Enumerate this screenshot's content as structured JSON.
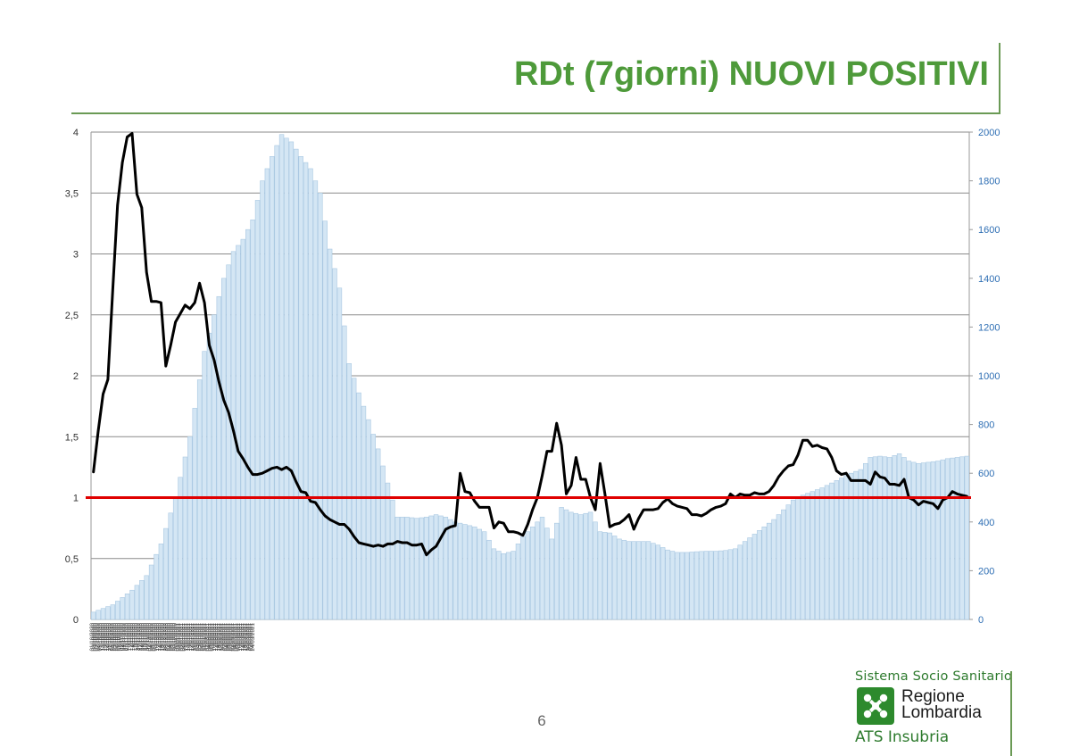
{
  "header": {
    "title": "RDt (7giorni) NUOVI POSITIVI"
  },
  "footer": {
    "page_number": "6",
    "logo": {
      "top_text": "Sistema Socio Sanitario",
      "name_line1": "Regione",
      "name_line2": "Lombardia",
      "bottom_text": "ATS Insubria"
    }
  },
  "colors": {
    "title": "#4e9a3a",
    "bars_fill": "#d4e6f4",
    "bars_stroke": "#a9c8e2",
    "line": "#000000",
    "threshold": "#e00000",
    "right_axis_labels": "#2f6fb4",
    "grid": "#8a8a8a"
  },
  "chart_data": {
    "type": "bar+line",
    "title": "",
    "left_axis": {
      "ylim": [
        0,
        4
      ],
      "ticks": [
        "0",
        "0,5",
        "1",
        "1,5",
        "2",
        "2,5",
        "3",
        "3,5",
        "4"
      ]
    },
    "right_axis": {
      "ylim": [
        0,
        2000
      ],
      "ticks": [
        "0",
        "200",
        "400",
        "600",
        "800",
        "1000",
        "1200",
        "1400",
        "1600",
        "1800",
        "2000"
      ]
    },
    "x_labels": [
      "01/10/2020",
      "03/10/2020",
      "05/10/2020",
      "07/10/2020",
      "09/10/2020",
      "11/10/2020",
      "13/10/2020",
      "15/10/2020",
      "17/10/2020",
      "19/10/2020",
      "21/10/2020",
      "23/10/2020",
      "25/10/2020",
      "27/10/2020",
      "29/10/2020",
      "31/10/2020",
      "02/11/2020",
      "04/11/2020",
      "06/11/2020",
      "08/11/2020",
      "10/11/2020",
      "12/11/2020",
      "14/11/2020",
      "16/11/2020",
      "18/11/2020",
      "20/11/2020",
      "22/11/2020",
      "24/11/2020",
      "26/11/2020",
      "28/11/2020",
      "30/11/2020",
      "02/12/2020",
      "04/12/2020",
      "06/12/2020",
      "08/12/2020",
      "10/12/2020",
      "12/12/2020",
      "14/12/2020",
      "16/12/2020",
      "18/12/2020",
      "20/12/2020",
      "22/12/2020",
      "24/12/2020",
      "26/12/2020",
      "28/12/2020",
      "30/12/2020",
      "01/01/2021",
      "03/01/2021",
      "05/01/2021",
      "07/01/2021",
      "09/01/2021",
      "11/01/2021",
      "13/01/2021",
      "15/01/2021",
      "17/01/2021",
      "19/01/2021",
      "21/01/2021",
      "23/01/2021",
      "25/01/2021",
      "27/01/2021",
      "29/01/2021",
      "31/01/2021",
      "02/02/2021",
      "04/02/2021",
      "06/02/2021",
      "08/02/2021",
      "10/02/2021",
      "12/02/2021",
      "14/02/2021",
      "16/02/2021",
      "18/02/2021",
      "20/02/2021",
      "22/02/2021",
      "24/02/2021",
      "26/02/2021",
      "28/02/2021",
      "02/03/2021",
      "04/03/2021",
      "06/03/2021",
      "08/03/2021",
      "10/03/2021",
      "12/03/2021",
      "14/03/2021",
      "16/03/2021",
      "18/03/2021",
      "20/03/2021",
      "22/03/2021",
      "24/03/2021"
    ],
    "bars_anchors": [
      [
        0,
        30
      ],
      [
        4,
        60
      ],
      [
        8,
        120
      ],
      [
        11,
        180
      ],
      [
        14,
        310
      ],
      [
        17,
        500
      ],
      [
        20,
        750
      ],
      [
        23,
        1100
      ],
      [
        25,
        1250
      ],
      [
        27,
        1400
      ],
      [
        29,
        1510
      ],
      [
        31,
        1560
      ],
      [
        33,
        1640
      ],
      [
        35,
        1800
      ],
      [
        37,
        1900
      ],
      [
        39,
        1990
      ],
      [
        41,
        1960
      ],
      [
        43,
        1900
      ],
      [
        45,
        1850
      ],
      [
        47,
        1750
      ],
      [
        49,
        1520
      ],
      [
        51,
        1360
      ],
      [
        53,
        1050
      ],
      [
        55,
        930
      ],
      [
        57,
        820
      ],
      [
        59,
        700
      ],
      [
        61,
        560
      ],
      [
        63,
        420
      ],
      [
        65,
        420
      ],
      [
        67,
        415
      ],
      [
        69,
        420
      ],
      [
        71,
        430
      ],
      [
        73,
        420
      ],
      [
        75,
        400
      ],
      [
        77,
        390
      ],
      [
        79,
        380
      ],
      [
        81,
        360
      ],
      [
        83,
        290
      ],
      [
        85,
        270
      ],
      [
        87,
        280
      ],
      [
        89,
        340
      ],
      [
        91,
        380
      ],
      [
        93,
        420
      ],
      [
        95,
        330
      ],
      [
        97,
        460
      ],
      [
        99,
        440
      ],
      [
        101,
        430
      ],
      [
        103,
        440
      ],
      [
        105,
        360
      ],
      [
        107,
        355
      ],
      [
        109,
        330
      ],
      [
        111,
        320
      ],
      [
        113,
        320
      ],
      [
        115,
        320
      ],
      [
        117,
        305
      ],
      [
        119,
        285
      ],
      [
        121,
        275
      ],
      [
        123,
        275
      ],
      [
        125,
        278
      ],
      [
        127,
        280
      ],
      [
        129,
        280
      ],
      [
        131,
        283
      ],
      [
        133,
        290
      ],
      [
        135,
        320
      ],
      [
        137,
        350
      ],
      [
        139,
        380
      ],
      [
        141,
        410
      ],
      [
        143,
        450
      ],
      [
        145,
        490
      ],
      [
        147,
        510
      ],
      [
        149,
        525
      ],
      [
        151,
        540
      ],
      [
        153,
        560
      ],
      [
        155,
        580
      ],
      [
        157,
        600
      ],
      [
        159,
        615
      ],
      [
        161,
        665
      ],
      [
        163,
        670
      ],
      [
        165,
        665
      ],
      [
        167,
        680
      ],
      [
        169,
        650
      ],
      [
        171,
        640
      ],
      [
        173,
        645
      ],
      [
        175,
        650
      ],
      [
        177,
        660
      ],
      [
        179,
        665
      ],
      [
        181,
        670
      ]
    ],
    "bar_count": 182,
    "rdt_line": [
      [
        0,
        1.21
      ],
      [
        1,
        1.55
      ],
      [
        2,
        1.85
      ],
      [
        3,
        1.97
      ],
      [
        4,
        2.7
      ],
      [
        5,
        3.4
      ],
      [
        6,
        3.75
      ],
      [
        7,
        3.96
      ],
      [
        8,
        3.99
      ],
      [
        9,
        3.49
      ],
      [
        10,
        3.38
      ],
      [
        11,
        2.85
      ],
      [
        12,
        2.61
      ],
      [
        13,
        2.61
      ],
      [
        14,
        2.6
      ],
      [
        15,
        2.08
      ],
      [
        16,
        2.25
      ],
      [
        17,
        2.44
      ],
      [
        18,
        2.51
      ],
      [
        19,
        2.58
      ],
      [
        20,
        2.55
      ],
      [
        21,
        2.6
      ],
      [
        22,
        2.76
      ],
      [
        23,
        2.6
      ],
      [
        24,
        2.25
      ],
      [
        25,
        2.13
      ],
      [
        26,
        1.95
      ],
      [
        27,
        1.8
      ],
      [
        28,
        1.7
      ],
      [
        29,
        1.55
      ],
      [
        30,
        1.38
      ],
      [
        31,
        1.32
      ],
      [
        32,
        1.25
      ],
      [
        33,
        1.19
      ],
      [
        34,
        1.19
      ],
      [
        35,
        1.2
      ],
      [
        36,
        1.22
      ],
      [
        37,
        1.24
      ],
      [
        38,
        1.25
      ],
      [
        39,
        1.23
      ],
      [
        40,
        1.25
      ],
      [
        41,
        1.22
      ],
      [
        42,
        1.13
      ],
      [
        43,
        1.05
      ],
      [
        44,
        1.04
      ],
      [
        45,
        0.97
      ],
      [
        46,
        0.96
      ],
      [
        47,
        0.9
      ],
      [
        48,
        0.85
      ],
      [
        49,
        0.82
      ],
      [
        50,
        0.8
      ],
      [
        51,
        0.78
      ],
      [
        52,
        0.78
      ],
      [
        53,
        0.74
      ],
      [
        54,
        0.68
      ],
      [
        55,
        0.63
      ],
      [
        56,
        0.62
      ],
      [
        57,
        0.61
      ],
      [
        58,
        0.6
      ],
      [
        59,
        0.61
      ],
      [
        60,
        0.6
      ],
      [
        61,
        0.62
      ],
      [
        62,
        0.62
      ],
      [
        63,
        0.64
      ],
      [
        64,
        0.63
      ],
      [
        65,
        0.63
      ],
      [
        66,
        0.61
      ],
      [
        67,
        0.61
      ],
      [
        68,
        0.62
      ],
      [
        69,
        0.53
      ],
      [
        70,
        0.57
      ],
      [
        71,
        0.6
      ],
      [
        72,
        0.67
      ],
      [
        73,
        0.74
      ],
      [
        74,
        0.76
      ],
      [
        75,
        0.77
      ],
      [
        76,
        1.2
      ],
      [
        77,
        1.05
      ],
      [
        78,
        1.04
      ],
      [
        79,
        0.97
      ],
      [
        80,
        0.92
      ],
      [
        81,
        0.92
      ],
      [
        82,
        0.92
      ],
      [
        83,
        0.75
      ],
      [
        84,
        0.8
      ],
      [
        85,
        0.79
      ],
      [
        86,
        0.72
      ],
      [
        87,
        0.72
      ],
      [
        88,
        0.71
      ],
      [
        89,
        0.69
      ],
      [
        90,
        0.78
      ],
      [
        91,
        0.9
      ],
      [
        92,
        1.0
      ],
      [
        93,
        1.18
      ],
      [
        94,
        1.38
      ],
      [
        95,
        1.38
      ],
      [
        96,
        1.61
      ],
      [
        97,
        1.43
      ],
      [
        98,
        1.03
      ],
      [
        99,
        1.1
      ],
      [
        100,
        1.33
      ],
      [
        101,
        1.15
      ],
      [
        102,
        1.15
      ],
      [
        103,
        1.0
      ],
      [
        104,
        0.9
      ],
      [
        105,
        1.28
      ],
      [
        106,
        1.03
      ],
      [
        107,
        0.76
      ],
      [
        108,
        0.78
      ],
      [
        109,
        0.79
      ],
      [
        110,
        0.82
      ],
      [
        111,
        0.86
      ],
      [
        112,
        0.74
      ],
      [
        113,
        0.83
      ],
      [
        114,
        0.9
      ],
      [
        115,
        0.9
      ],
      [
        116,
        0.9
      ],
      [
        117,
        0.91
      ],
      [
        118,
        0.96
      ],
      [
        119,
        0.99
      ],
      [
        120,
        0.95
      ],
      [
        121,
        0.93
      ],
      [
        122,
        0.92
      ],
      [
        123,
        0.91
      ],
      [
        124,
        0.86
      ],
      [
        125,
        0.86
      ],
      [
        126,
        0.85
      ],
      [
        127,
        0.87
      ],
      [
        128,
        0.9
      ],
      [
        129,
        0.92
      ],
      [
        130,
        0.93
      ],
      [
        131,
        0.95
      ],
      [
        132,
        1.03
      ],
      [
        133,
        1.0
      ],
      [
        134,
        1.03
      ],
      [
        135,
        1.02
      ],
      [
        136,
        1.02
      ],
      [
        137,
        1.04
      ],
      [
        138,
        1.03
      ],
      [
        139,
        1.03
      ],
      [
        140,
        1.05
      ],
      [
        141,
        1.1
      ],
      [
        142,
        1.17
      ],
      [
        143,
        1.22
      ],
      [
        144,
        1.26
      ],
      [
        145,
        1.27
      ],
      [
        146,
        1.35
      ],
      [
        147,
        1.47
      ],
      [
        148,
        1.47
      ],
      [
        149,
        1.42
      ],
      [
        150,
        1.43
      ],
      [
        151,
        1.41
      ],
      [
        152,
        1.4
      ],
      [
        153,
        1.33
      ],
      [
        154,
        1.22
      ],
      [
        155,
        1.19
      ],
      [
        156,
        1.2
      ],
      [
        157,
        1.14
      ],
      [
        158,
        1.14
      ],
      [
        159,
        1.14
      ],
      [
        160,
        1.14
      ],
      [
        161,
        1.11
      ],
      [
        162,
        1.21
      ],
      [
        163,
        1.17
      ],
      [
        164,
        1.16
      ],
      [
        165,
        1.11
      ],
      [
        166,
        1.11
      ],
      [
        167,
        1.1
      ],
      [
        168,
        1.15
      ],
      [
        169,
        1.0
      ],
      [
        170,
        0.98
      ],
      [
        171,
        0.94
      ],
      [
        172,
        0.97
      ],
      [
        173,
        0.96
      ],
      [
        174,
        0.95
      ],
      [
        175,
        0.91
      ],
      [
        176,
        0.98
      ],
      [
        177,
        1.0
      ],
      [
        178,
        1.05
      ],
      [
        179,
        1.03
      ],
      [
        180,
        1.02
      ],
      [
        181,
        1.01
      ]
    ],
    "threshold": 1.0
  }
}
